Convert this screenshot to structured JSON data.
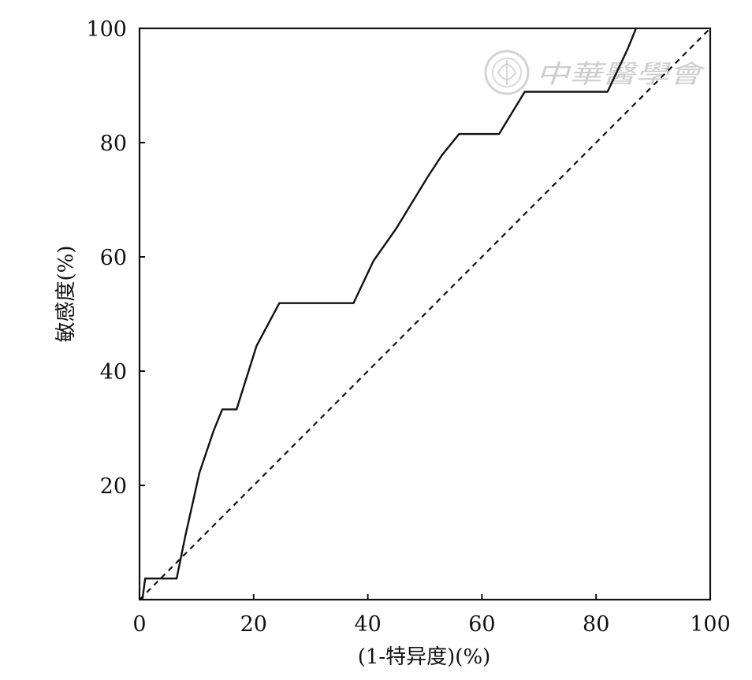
{
  "chart_data": {
    "type": "line",
    "title": "",
    "xlabel": "(1-特异度)(%)",
    "ylabel": "敏感度(%)",
    "xlim": [
      0,
      100
    ],
    "ylim": [
      0,
      100
    ],
    "xticks": [
      0,
      20,
      40,
      60,
      80,
      100
    ],
    "yticks": [
      20,
      40,
      60,
      80,
      100
    ],
    "grid": false,
    "series": [
      {
        "style": "solid",
        "color": "#111111",
        "points": [
          [
            0.5,
            0
          ],
          [
            1,
            3.7
          ],
          [
            6.5,
            3.7
          ],
          [
            8,
            11
          ],
          [
            10.5,
            22.2
          ],
          [
            13,
            29.6
          ],
          [
            14.5,
            33.3
          ],
          [
            17,
            33.3
          ],
          [
            20.5,
            44.4
          ],
          [
            24.5,
            51.9
          ],
          [
            37.5,
            51.9
          ],
          [
            41,
            59.3
          ],
          [
            45,
            65
          ],
          [
            50.5,
            74
          ],
          [
            53,
            77.8
          ],
          [
            56,
            81.5
          ],
          [
            63,
            81.5
          ],
          [
            67.5,
            88.9
          ],
          [
            82,
            88.9
          ],
          [
            85.5,
            96.3
          ],
          [
            87,
            100
          ]
        ]
      },
      {
        "style": "dashed",
        "color": "#111111",
        "points": [
          [
            0,
            0
          ],
          [
            100,
            100
          ]
        ]
      }
    ],
    "watermark": {
      "text": "中華醫學會",
      "emblem": "medical-association-seal-icon",
      "color": "#c8c8c8"
    }
  }
}
